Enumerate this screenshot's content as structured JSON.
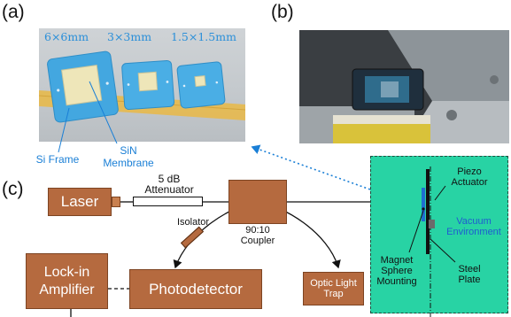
{
  "panels": {
    "a": "(a)",
    "b": "(b)",
    "c": "(c)"
  },
  "panel_a": {
    "sizes": [
      "6×6mm",
      "3×3mm",
      "1.5×1.5mm"
    ],
    "si_frame": "Si Frame",
    "sin_membrane_line1": "SiN",
    "sin_membrane_line2": "Membrane"
  },
  "diagram": {
    "laser": "Laser",
    "attenuator_line1": "5 dB",
    "attenuator_line2": "Attenuator",
    "isolator": "Isolator",
    "coupler_line1": "90:10",
    "coupler_line2": "Coupler",
    "lockin_line1": "Lock-in",
    "lockin_line2": "Amplifier",
    "photodetector": "Photodetector",
    "trap_line1": "Optic Light",
    "trap_line2": "Trap",
    "piezo_line1": "Piezo",
    "piezo_line2": "Actuator",
    "vacuum_line1": "Vacuum",
    "vacuum_line2": "Environment",
    "magnet_line1": "Magnet",
    "magnet_line2": "Sphere",
    "magnet_line3": "Mounting",
    "steel_line1": "Steel",
    "steel_line2": "Plate"
  },
  "colors": {
    "component_fill": "#b56a3f",
    "vacuum_fill": "#28d3a4",
    "label_blue": "#1a7fd6",
    "size_blue": "#2b8fd9"
  }
}
